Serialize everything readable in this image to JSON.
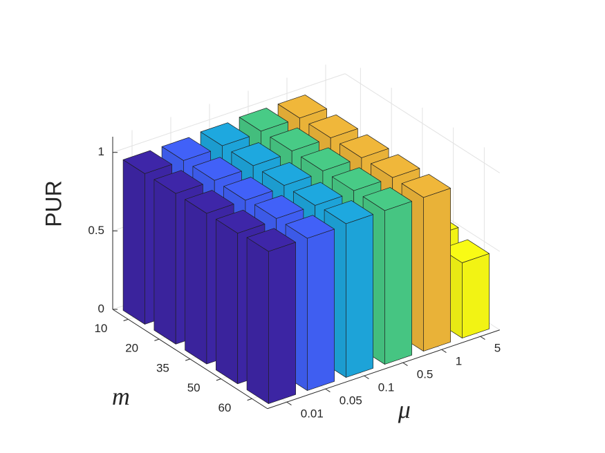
{
  "chart_data": {
    "type": "bar3d",
    "zlabel": "PUR",
    "xlabel": "m",
    "ylabel": "μ",
    "categories": [
      "10",
      "20",
      "35",
      "50",
      "60"
    ],
    "series": [
      {
        "name": "0.01",
        "color": "#3e26a8",
        "values": [
          0.96,
          0.96,
          0.96,
          0.96,
          0.97
        ]
      },
      {
        "name": "0.05",
        "color": "#4161f8",
        "values": [
          0.96,
          0.96,
          0.96,
          0.97,
          0.97
        ]
      },
      {
        "name": "0.1",
        "color": "#1ea8df",
        "values": [
          0.97,
          0.97,
          0.97,
          0.97,
          0.98
        ]
      },
      {
        "name": "0.5",
        "color": "#48cb86",
        "values": [
          0.98,
          0.98,
          0.98,
          0.98,
          0.98
        ]
      },
      {
        "name": "1",
        "color": "#f0b73a",
        "values": [
          0.98,
          0.98,
          0.98,
          0.98,
          0.98
        ]
      },
      {
        "name": "5",
        "color": "#f9fb15",
        "values": [
          0.5,
          0.5,
          0.5,
          0.52,
          0.48
        ]
      }
    ],
    "zlim": [
      0,
      1.1
    ],
    "zticks": [
      0,
      0.5,
      1
    ],
    "grid": true
  }
}
